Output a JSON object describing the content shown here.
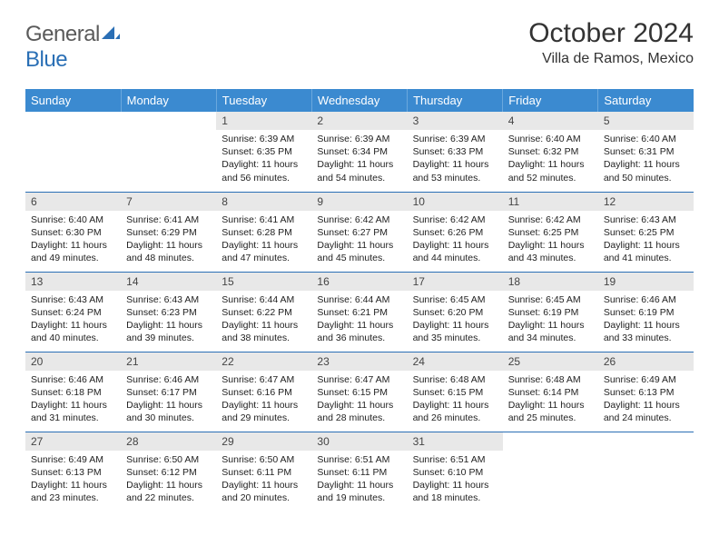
{
  "logo": {
    "part1": "General",
    "part2": "Blue"
  },
  "title": "October 2024",
  "location": "Villa de Ramos, Mexico",
  "colors": {
    "header_bg": "#3b8ad0",
    "header_text": "#ffffff",
    "daynum_bg": "#e8e8e8",
    "row_divider": "#2a6fb5",
    "logo_gray": "#5a5a5a",
    "logo_blue": "#2a6fb5"
  },
  "weekdays": [
    "Sunday",
    "Monday",
    "Tuesday",
    "Wednesday",
    "Thursday",
    "Friday",
    "Saturday"
  ],
  "weeks": [
    [
      {
        "empty": true
      },
      {
        "empty": true
      },
      {
        "n": "1",
        "sr": "Sunrise: 6:39 AM",
        "ss": "Sunset: 6:35 PM",
        "dl": "Daylight: 11 hours and 56 minutes."
      },
      {
        "n": "2",
        "sr": "Sunrise: 6:39 AM",
        "ss": "Sunset: 6:34 PM",
        "dl": "Daylight: 11 hours and 54 minutes."
      },
      {
        "n": "3",
        "sr": "Sunrise: 6:39 AM",
        "ss": "Sunset: 6:33 PM",
        "dl": "Daylight: 11 hours and 53 minutes."
      },
      {
        "n": "4",
        "sr": "Sunrise: 6:40 AM",
        "ss": "Sunset: 6:32 PM",
        "dl": "Daylight: 11 hours and 52 minutes."
      },
      {
        "n": "5",
        "sr": "Sunrise: 6:40 AM",
        "ss": "Sunset: 6:31 PM",
        "dl": "Daylight: 11 hours and 50 minutes."
      }
    ],
    [
      {
        "n": "6",
        "sr": "Sunrise: 6:40 AM",
        "ss": "Sunset: 6:30 PM",
        "dl": "Daylight: 11 hours and 49 minutes."
      },
      {
        "n": "7",
        "sr": "Sunrise: 6:41 AM",
        "ss": "Sunset: 6:29 PM",
        "dl": "Daylight: 11 hours and 48 minutes."
      },
      {
        "n": "8",
        "sr": "Sunrise: 6:41 AM",
        "ss": "Sunset: 6:28 PM",
        "dl": "Daylight: 11 hours and 47 minutes."
      },
      {
        "n": "9",
        "sr": "Sunrise: 6:42 AM",
        "ss": "Sunset: 6:27 PM",
        "dl": "Daylight: 11 hours and 45 minutes."
      },
      {
        "n": "10",
        "sr": "Sunrise: 6:42 AM",
        "ss": "Sunset: 6:26 PM",
        "dl": "Daylight: 11 hours and 44 minutes."
      },
      {
        "n": "11",
        "sr": "Sunrise: 6:42 AM",
        "ss": "Sunset: 6:25 PM",
        "dl": "Daylight: 11 hours and 43 minutes."
      },
      {
        "n": "12",
        "sr": "Sunrise: 6:43 AM",
        "ss": "Sunset: 6:25 PM",
        "dl": "Daylight: 11 hours and 41 minutes."
      }
    ],
    [
      {
        "n": "13",
        "sr": "Sunrise: 6:43 AM",
        "ss": "Sunset: 6:24 PM",
        "dl": "Daylight: 11 hours and 40 minutes."
      },
      {
        "n": "14",
        "sr": "Sunrise: 6:43 AM",
        "ss": "Sunset: 6:23 PM",
        "dl": "Daylight: 11 hours and 39 minutes."
      },
      {
        "n": "15",
        "sr": "Sunrise: 6:44 AM",
        "ss": "Sunset: 6:22 PM",
        "dl": "Daylight: 11 hours and 38 minutes."
      },
      {
        "n": "16",
        "sr": "Sunrise: 6:44 AM",
        "ss": "Sunset: 6:21 PM",
        "dl": "Daylight: 11 hours and 36 minutes."
      },
      {
        "n": "17",
        "sr": "Sunrise: 6:45 AM",
        "ss": "Sunset: 6:20 PM",
        "dl": "Daylight: 11 hours and 35 minutes."
      },
      {
        "n": "18",
        "sr": "Sunrise: 6:45 AM",
        "ss": "Sunset: 6:19 PM",
        "dl": "Daylight: 11 hours and 34 minutes."
      },
      {
        "n": "19",
        "sr": "Sunrise: 6:46 AM",
        "ss": "Sunset: 6:19 PM",
        "dl": "Daylight: 11 hours and 33 minutes."
      }
    ],
    [
      {
        "n": "20",
        "sr": "Sunrise: 6:46 AM",
        "ss": "Sunset: 6:18 PM",
        "dl": "Daylight: 11 hours and 31 minutes."
      },
      {
        "n": "21",
        "sr": "Sunrise: 6:46 AM",
        "ss": "Sunset: 6:17 PM",
        "dl": "Daylight: 11 hours and 30 minutes."
      },
      {
        "n": "22",
        "sr": "Sunrise: 6:47 AM",
        "ss": "Sunset: 6:16 PM",
        "dl": "Daylight: 11 hours and 29 minutes."
      },
      {
        "n": "23",
        "sr": "Sunrise: 6:47 AM",
        "ss": "Sunset: 6:15 PM",
        "dl": "Daylight: 11 hours and 28 minutes."
      },
      {
        "n": "24",
        "sr": "Sunrise: 6:48 AM",
        "ss": "Sunset: 6:15 PM",
        "dl": "Daylight: 11 hours and 26 minutes."
      },
      {
        "n": "25",
        "sr": "Sunrise: 6:48 AM",
        "ss": "Sunset: 6:14 PM",
        "dl": "Daylight: 11 hours and 25 minutes."
      },
      {
        "n": "26",
        "sr": "Sunrise: 6:49 AM",
        "ss": "Sunset: 6:13 PM",
        "dl": "Daylight: 11 hours and 24 minutes."
      }
    ],
    [
      {
        "n": "27",
        "sr": "Sunrise: 6:49 AM",
        "ss": "Sunset: 6:13 PM",
        "dl": "Daylight: 11 hours and 23 minutes."
      },
      {
        "n": "28",
        "sr": "Sunrise: 6:50 AM",
        "ss": "Sunset: 6:12 PM",
        "dl": "Daylight: 11 hours and 22 minutes."
      },
      {
        "n": "29",
        "sr": "Sunrise: 6:50 AM",
        "ss": "Sunset: 6:11 PM",
        "dl": "Daylight: 11 hours and 20 minutes."
      },
      {
        "n": "30",
        "sr": "Sunrise: 6:51 AM",
        "ss": "Sunset: 6:11 PM",
        "dl": "Daylight: 11 hours and 19 minutes."
      },
      {
        "n": "31",
        "sr": "Sunrise: 6:51 AM",
        "ss": "Sunset: 6:10 PM",
        "dl": "Daylight: 11 hours and 18 minutes."
      },
      {
        "empty": true
      },
      {
        "empty": true
      }
    ]
  ]
}
